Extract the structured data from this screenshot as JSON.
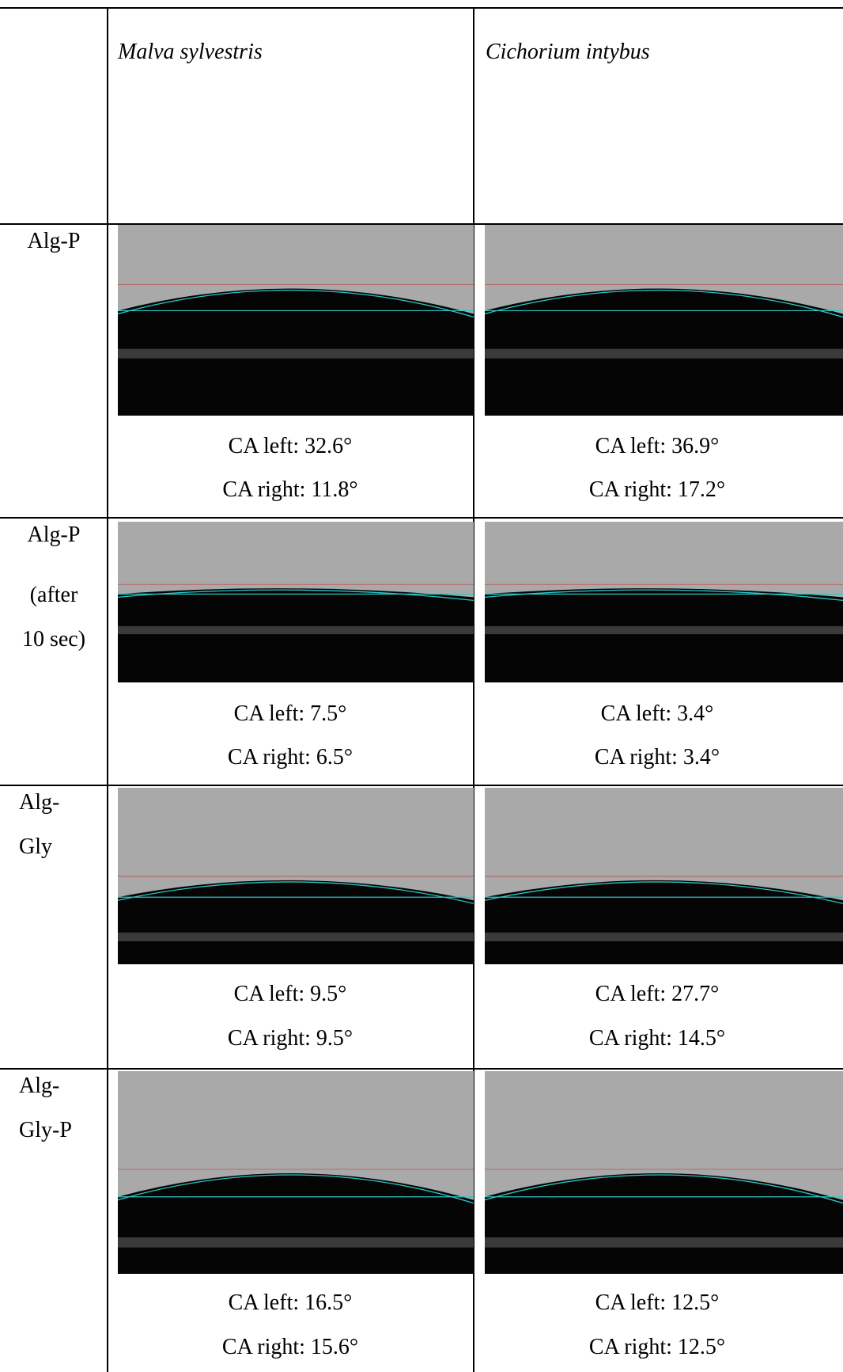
{
  "table": {
    "header": [
      "Malva sylvestris",
      "Cichorium intybus"
    ],
    "rows": [
      {
        "label": [
          "Alg-P"
        ],
        "cells": [
          {
            "left": "CA left: 32.6°",
            "right": "CA right: 11.8°"
          },
          {
            "left": "CA left: 36.9°",
            "right": "CA right: 17.2°"
          }
        ]
      },
      {
        "label": [
          "Alg-P",
          "(after",
          "10 sec)"
        ],
        "cells": [
          {
            "left": "CA left: 7.5°",
            "right": "CA right: 6.5°"
          },
          {
            "left": "CA left: 3.4°",
            "right": "CA right: 3.4°"
          }
        ]
      },
      {
        "label": [
          "Alg-",
          "Gly"
        ],
        "cells": [
          {
            "left": "CA left: 9.5°",
            "right": "CA right: 9.5°"
          },
          {
            "left": "CA left: 27.7°",
            "right": "CA right: 14.5°"
          }
        ]
      },
      {
        "label": [
          "Alg-",
          "Gly-P"
        ],
        "cells": [
          {
            "left": "CA left: 16.5°",
            "right": "CA right: 15.6°"
          },
          {
            "left": "CA left: 12.5°",
            "right": "CA right: 12.5°"
          }
        ]
      }
    ]
  }
}
